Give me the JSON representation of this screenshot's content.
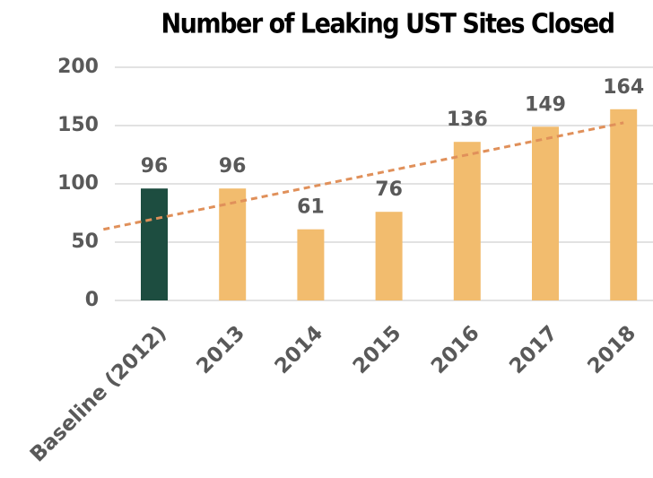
{
  "chart_data": {
    "type": "bar",
    "title": "Number of Leaking UST Sites Closed",
    "categories": [
      "Baseline (2012)",
      "2013",
      "2014",
      "2015",
      "2016",
      "2017",
      "2018"
    ],
    "values": [
      96,
      96,
      61,
      76,
      136,
      149,
      164
    ],
    "colors": [
      "#1d4d40",
      "#f2bc6e",
      "#f2bc6e",
      "#f2bc6e",
      "#f2bc6e",
      "#f2bc6e",
      "#f2bc6e"
    ],
    "ylim": [
      0,
      200
    ],
    "yticks": [
      0,
      50,
      100,
      150,
      200
    ],
    "grid": true,
    "trendline": "linear",
    "trendline_color": "#e0905a"
  }
}
